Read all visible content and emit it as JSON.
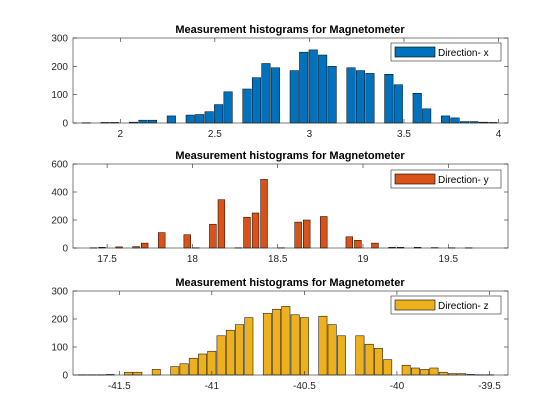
{
  "chart_data": [
    {
      "type": "bar",
      "title": "Measurement histograms for Magnetometer",
      "xlabel": "",
      "ylabel": "",
      "xlim": [
        1.75,
        4.05
      ],
      "ylim": [
        0,
        300
      ],
      "xticks": [
        2,
        2.5,
        3,
        3.5,
        4
      ],
      "yticks": [
        0,
        100,
        200,
        300
      ],
      "bin_width": 0.045,
      "color": "#0072BD",
      "legend": {
        "label": "Direction- x",
        "position": "top-right"
      },
      "x": [
        1.82,
        1.87,
        1.92,
        1.97,
        2.02,
        2.07,
        2.12,
        2.17,
        2.22,
        2.27,
        2.32,
        2.37,
        2.42,
        2.47,
        2.52,
        2.57,
        2.62,
        2.67,
        2.72,
        2.77,
        2.82,
        2.87,
        2.92,
        2.97,
        3.02,
        3.07,
        3.12,
        3.17,
        3.22,
        3.27,
        3.32,
        3.37,
        3.42,
        3.47,
        3.52,
        3.57,
        3.62,
        3.67,
        3.72,
        3.77,
        3.82,
        3.87,
        3.92,
        3.97
      ],
      "values": [
        1,
        0,
        2,
        2,
        0,
        3,
        10,
        10,
        0,
        25,
        0,
        28,
        30,
        40,
        65,
        110,
        0,
        120,
        160,
        210,
        195,
        0,
        185,
        250,
        258,
        240,
        200,
        0,
        195,
        185,
        175,
        0,
        172,
        135,
        0,
        105,
        50,
        0,
        25,
        18,
        5,
        5,
        3,
        2
      ]
    },
    {
      "type": "bar",
      "title": "Measurement histograms for Magnetometer",
      "xlabel": "",
      "ylabel": "",
      "xlim": [
        17.3,
        19.85
      ],
      "ylim": [
        0,
        600
      ],
      "xticks": [
        17.5,
        18,
        18.5,
        19,
        19.5
      ],
      "yticks": [
        0,
        200,
        400,
        600
      ],
      "bin_width": 0.04,
      "color": "#D95319",
      "legend": {
        "label": "Direction- y",
        "position": "top-right"
      },
      "x": [
        17.42,
        17.47,
        17.57,
        17.67,
        17.72,
        17.82,
        17.97,
        18.02,
        18.12,
        18.17,
        18.27,
        18.32,
        18.37,
        18.42,
        18.52,
        18.62,
        18.67,
        18.77,
        18.92,
        18.97,
        19.07,
        19.17,
        19.22,
        19.32,
        19.42,
        19.52,
        19.62
      ],
      "values": [
        2,
        5,
        8,
        10,
        35,
        110,
        95,
        2,
        170,
        345,
        2,
        220,
        250,
        490,
        2,
        185,
        200,
        225,
        80,
        55,
        35,
        5,
        5,
        5,
        3,
        2,
        2
      ]
    },
    {
      "type": "bar",
      "title": "Measurement histograms for Magnetometer",
      "xlabel": "",
      "ylabel": "",
      "xlim": [
        -41.75,
        -39.4
      ],
      "ylim": [
        0,
        300
      ],
      "xticks": [
        -41.5,
        -41,
        -40.5,
        -40,
        -39.5
      ],
      "yticks": [
        0,
        100,
        200,
        300
      ],
      "bin_width": 0.045,
      "color": "#EDB120",
      "legend": {
        "label": "Direction- z",
        "position": "top-right"
      },
      "x": [
        -41.7,
        -41.65,
        -41.6,
        -41.55,
        -41.45,
        -41.4,
        -41.3,
        -41.2,
        -41.15,
        -41.1,
        -41.05,
        -41.0,
        -40.95,
        -40.9,
        -40.85,
        -40.8,
        -40.75,
        -40.7,
        -40.65,
        -40.6,
        -40.55,
        -40.5,
        -40.45,
        -40.4,
        -40.35,
        -40.3,
        -40.25,
        -40.2,
        -40.15,
        -40.1,
        -40.05,
        -40.0,
        -39.95,
        -39.9,
        -39.85,
        -39.8,
        -39.75,
        -39.7,
        -39.65,
        -39.6,
        -39.55,
        -39.5
      ],
      "values": [
        1,
        1,
        1,
        2,
        10,
        10,
        20,
        30,
        40,
        60,
        75,
        85,
        140,
        160,
        180,
        205,
        0,
        220,
        235,
        245,
        215,
        205,
        0,
        210,
        180,
        140,
        0,
        140,
        110,
        95,
        55,
        0,
        35,
        25,
        20,
        25,
        10,
        5,
        5,
        2,
        1,
        1
      ]
    }
  ]
}
